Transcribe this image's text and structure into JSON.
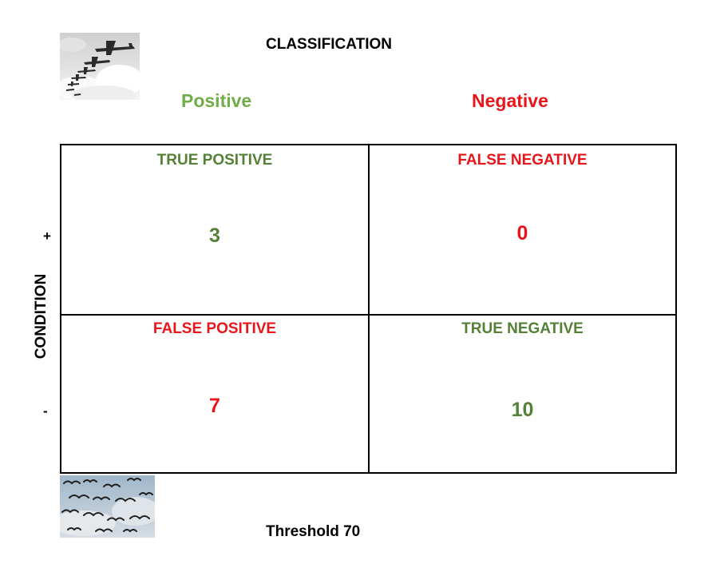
{
  "title": "CLASSIFICATION",
  "columns": {
    "positive": "Positive",
    "negative": "Negative"
  },
  "axis_title": "CONDITION",
  "row_signs": {
    "positive": "+",
    "negative": "-"
  },
  "cells": {
    "true_positive": {
      "label": "TRUE POSITIVE",
      "value": "3"
    },
    "false_negative": {
      "label": "FALSE NEGATIVE",
      "value": "0"
    },
    "false_positive": {
      "label": "FALSE POSITIVE",
      "value": "7"
    },
    "true_negative": {
      "label": "TRUE NEGATIVE",
      "value": "10"
    }
  },
  "footer": "Threshold 70",
  "images": {
    "top": "bomber-planes-photo",
    "bottom": "birds-flock-photo"
  },
  "colors": {
    "positive_heading": "#70ad47",
    "green_text": "#538135",
    "red_text": "#e8161b"
  }
}
